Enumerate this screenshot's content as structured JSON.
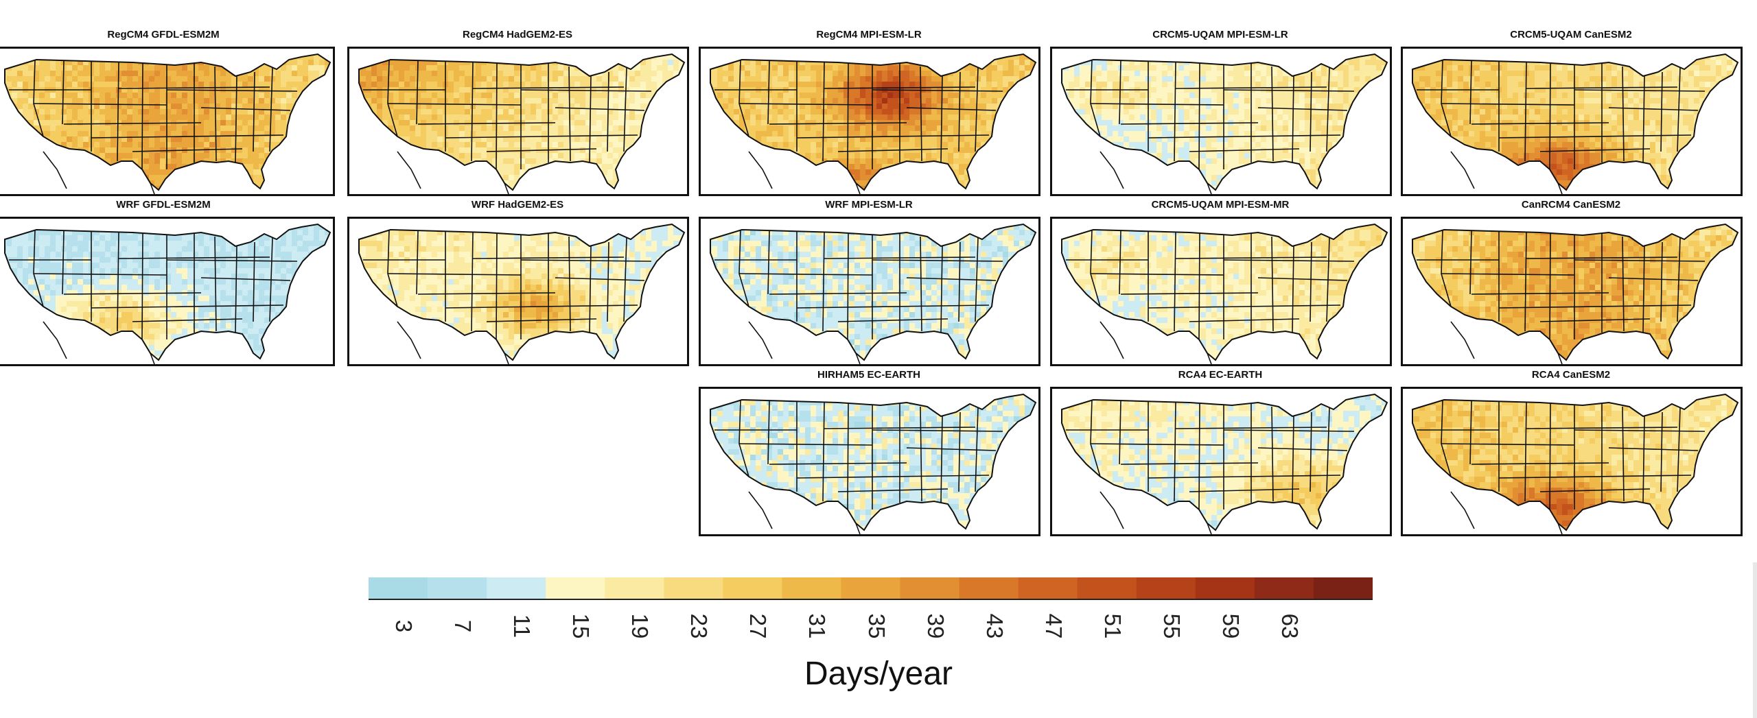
{
  "panels": [
    {
      "title": "RegCM4 GFDL-ESM2M",
      "scheme": "warm-mid"
    },
    {
      "title": "RegCM4 HadGEM2-ES",
      "scheme": "warm-west"
    },
    {
      "title": "RegCM4 MPI-ESM-LR",
      "scheme": "hot-central"
    },
    {
      "title": "CRCM5-UQAM MPI-ESM-LR",
      "scheme": "mixed-east"
    },
    {
      "title": "CRCM5-UQAM CanESM2",
      "scheme": "hot-south"
    },
    {
      "title": "WRF GFDL-ESM2M",
      "scheme": "cool-southwest"
    },
    {
      "title": "WRF HadGEM2-ES",
      "scheme": "warm-south-central"
    },
    {
      "title": "WRF MPI-ESM-LR",
      "scheme": "cool"
    },
    {
      "title": "CRCM5-UQAM MPI-ESM-MR",
      "scheme": "mixed-east"
    },
    {
      "title": "CanRCM4 CanESM2",
      "scheme": "warm-mid"
    },
    {
      "title": "HIRHAM5 EC-EARTH",
      "scheme": "cool"
    },
    {
      "title": "RCA4 EC-EARTH",
      "scheme": "mixed-southeast"
    },
    {
      "title": "RCA4 CanESM2",
      "scheme": "hot-south"
    }
  ],
  "colorbar": {
    "ticks": [
      "3",
      "7",
      "11",
      "15",
      "19",
      "23",
      "27",
      "31",
      "35",
      "39",
      "43",
      "47",
      "51",
      "55",
      "59",
      "63"
    ],
    "colors": [
      "#a9dbe6",
      "#b6e0ec",
      "#cdebf3",
      "#fdf6c3",
      "#fbeaa2",
      "#f8db7f",
      "#f5cc60",
      "#efb94a",
      "#e9a43c",
      "#e28e32",
      "#da782a",
      "#d06422",
      "#c4521c",
      "#b64219",
      "#a53417",
      "#8f2a18",
      "#7a2215"
    ],
    "units": "Days/year"
  }
}
